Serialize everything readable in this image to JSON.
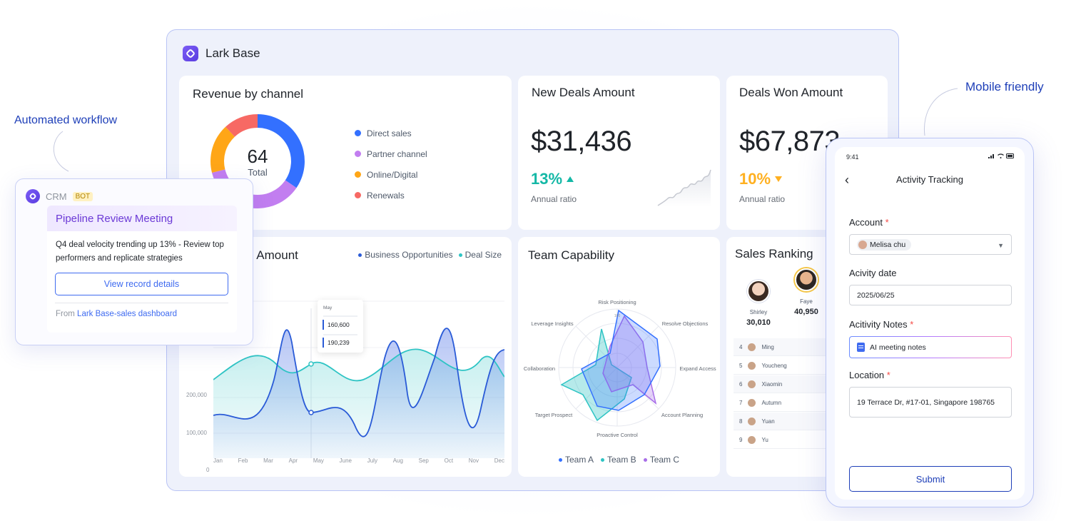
{
  "app": {
    "title": "Lark Base"
  },
  "revenue": {
    "title": "Revenue by channel",
    "center_value": "64",
    "center_label": "Total",
    "legend": [
      {
        "label": "Direct sales",
        "color": "#3370ff"
      },
      {
        "label": "Partner channel",
        "color": "#c27ef0"
      },
      {
        "label": "Online/Digital",
        "color": "#ffa617"
      },
      {
        "label": "Renewals",
        "color": "#f76964"
      }
    ]
  },
  "new_deals": {
    "title": "New Deals Amount",
    "value": "$31,436",
    "pct": "13%",
    "pct_color": "#14b8a6",
    "label": "Annual ratio"
  },
  "deals_won": {
    "title": "Deals Won Amount",
    "value": "$67,873",
    "pct": "10%",
    "pct_color": "#ffb020",
    "label": "Annual ratio"
  },
  "area": {
    "title": "s Amount",
    "legend": [
      {
        "label": "Business Opportunities",
        "color": "#2a5bd7"
      },
      {
        "label": "Deal Size",
        "color": "#2ec4c4"
      }
    ],
    "y_ticks": [
      "200,000",
      "100,000",
      "0"
    ],
    "x_ticks": [
      "Jan",
      "Feb",
      "Mar",
      "Apr",
      "May",
      "June",
      "July",
      "Aug",
      "Sep",
      "Oct",
      "Nov",
      "Dec"
    ],
    "tooltip": {
      "month": "May",
      "v1": "160,600",
      "v2": "190,239"
    }
  },
  "team": {
    "title": "Team Capability",
    "axes": [
      "Risk Positioning",
      "Resolve Objections",
      "Expand Access",
      "Account Planning",
      "Proactive Control",
      "Target Prospect",
      "Collaboration",
      "Leverage Insights"
    ],
    "scale_label": "100",
    "legend": [
      {
        "label": "Team A",
        "color": "#3370ff"
      },
      {
        "label": "Team B",
        "color": "#2ec4c4"
      },
      {
        "label": "Team C",
        "color": "#a86ee8"
      }
    ]
  },
  "ranking": {
    "title": "Sales Ranking",
    "top": [
      {
        "name": "Shirley",
        "value": "30,010"
      },
      {
        "name": "Faye",
        "value": "40,950"
      }
    ],
    "rows": [
      {
        "rank": "4",
        "name": "Ming"
      },
      {
        "rank": "5",
        "name": "Youcheng"
      },
      {
        "rank": "6",
        "name": "Xiaomin"
      },
      {
        "rank": "7",
        "name": "Autumn"
      },
      {
        "rank": "8",
        "name": "Yuan"
      },
      {
        "rank": "9",
        "name": "Yu"
      }
    ]
  },
  "labels": {
    "automated": "Automated workflow",
    "mobile": "Mobile friendly"
  },
  "crm": {
    "name": "CRM",
    "badge": "BOT",
    "card_title": "Pipeline Review Meeting",
    "text": "Q4 deal velocity trending up 13% - Review top performers and replicate strategies",
    "button": "View record details",
    "from_prefix": "From",
    "from_link": "Lark Base-sales dashboard"
  },
  "phone": {
    "time": "9:41",
    "title": "Activity Tracking",
    "account_label": "Account",
    "account_value": "Melisa chu",
    "date_label": "Acivity date",
    "date_value": "2025/06/25",
    "notes_label": "Acitivity Notes",
    "notes_value": "AI meeting notes",
    "location_label": "Location",
    "location_value": "19 Terrace Dr, #17-01, Singapore 198765",
    "submit": "Submit"
  }
}
